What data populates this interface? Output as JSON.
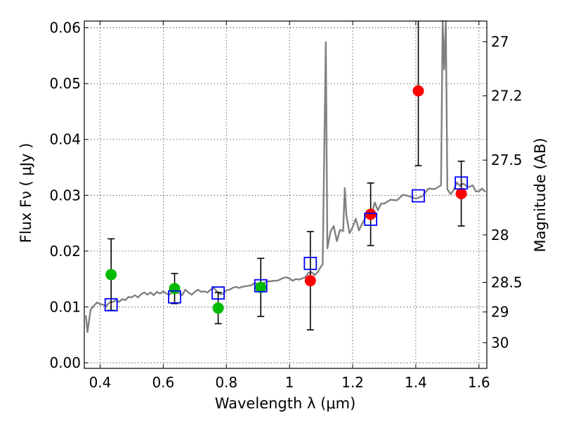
{
  "chart_data": {
    "type": "scatter",
    "xlabel": "Wavelength  λ (μm)",
    "ylabel": "Flux  Fν  ( μJy )",
    "ylabel_right": "Magnitude (AB)",
    "xlim": [
      0.35,
      1.625
    ],
    "ylim": [
      -0.001,
      0.0612
    ],
    "grid": true,
    "x_ticks": [
      0.4,
      0.6,
      0.8,
      1.0,
      1.2,
      1.4,
      1.6
    ],
    "x_tick_labels": [
      "0.4",
      "0.6",
      "0.8",
      "1",
      "1.2",
      "1.4",
      "1.6"
    ],
    "y_ticks": [
      0.0,
      0.01,
      0.02,
      0.03,
      0.04,
      0.05,
      0.06
    ],
    "y_tick_labels": [
      "0.00",
      "0.01",
      "0.02",
      "0.03",
      "0.04",
      "0.05",
      "0.06"
    ],
    "right_ticks": [
      {
        "label": "27",
        "flux": 0.0575
      },
      {
        "label": "27.2",
        "flux": 0.0478
      },
      {
        "label": "27.5",
        "flux": 0.0363
      },
      {
        "label": "28",
        "flux": 0.0229
      },
      {
        "label": "28.5",
        "flux": 0.0144
      },
      {
        "label": "29",
        "flux": 0.0091
      },
      {
        "label": "30",
        "flux": 0.0036
      }
    ],
    "series": [
      {
        "kind": "model_spectrum",
        "color": "#808080",
        "x": [
          0.355,
          0.36,
          0.365,
          0.37,
          0.38,
          0.39,
          0.4,
          0.41,
          0.42,
          0.43,
          0.44,
          0.45,
          0.46,
          0.47,
          0.48,
          0.49,
          0.5,
          0.51,
          0.52,
          0.53,
          0.54,
          0.55,
          0.56,
          0.57,
          0.58,
          0.59,
          0.6,
          0.61,
          0.62,
          0.63,
          0.64,
          0.65,
          0.66,
          0.67,
          0.68,
          0.69,
          0.7,
          0.71,
          0.72,
          0.73,
          0.74,
          0.75,
          0.76,
          0.77,
          0.78,
          0.79,
          0.8,
          0.81,
          0.82,
          0.83,
          0.84,
          0.85,
          0.86,
          0.87,
          0.88,
          0.89,
          0.9,
          0.91,
          0.92,
          0.93,
          0.94,
          0.95,
          0.96,
          0.97,
          0.98,
          0.99,
          1.0,
          1.01,
          1.02,
          1.03,
          1.04,
          1.05,
          1.06,
          1.07,
          1.08,
          1.09,
          1.1,
          1.105,
          1.11,
          1.115,
          1.12,
          1.13,
          1.14,
          1.15,
          1.16,
          1.17,
          1.175,
          1.18,
          1.19,
          1.2,
          1.21,
          1.22,
          1.23,
          1.24,
          1.25,
          1.26,
          1.27,
          1.28,
          1.29,
          1.3,
          1.32,
          1.34,
          1.36,
          1.38,
          1.4,
          1.42,
          1.44,
          1.46,
          1.48,
          1.485,
          1.49,
          1.495,
          1.5,
          1.51,
          1.52,
          1.53,
          1.54,
          1.55,
          1.56,
          1.57,
          1.58,
          1.59,
          1.6,
          1.61,
          1.62
        ],
        "y": [
          0.0085,
          0.0055,
          0.0075,
          0.0095,
          0.0102,
          0.0108,
          0.0105,
          0.0104,
          0.0102,
          0.0108,
          0.0109,
          0.0112,
          0.0109,
          0.0114,
          0.0112,
          0.0118,
          0.0117,
          0.0121,
          0.0117,
          0.0123,
          0.0126,
          0.0122,
          0.0126,
          0.0121,
          0.0127,
          0.0124,
          0.0128,
          0.0124,
          0.0122,
          0.0129,
          0.0126,
          0.0125,
          0.0121,
          0.0131,
          0.0126,
          0.0122,
          0.0127,
          0.0131,
          0.0127,
          0.0128,
          0.0126,
          0.0131,
          0.0134,
          0.0128,
          0.0123,
          0.0124,
          0.013,
          0.0131,
          0.0134,
          0.0136,
          0.0134,
          0.0136,
          0.0137,
          0.0138,
          0.0139,
          0.0143,
          0.0141,
          0.0142,
          0.0143,
          0.0146,
          0.0146,
          0.0147,
          0.0147,
          0.0149,
          0.0152,
          0.0153,
          0.0151,
          0.0147,
          0.015,
          0.0149,
          0.0151,
          0.0153,
          0.0161,
          0.0162,
          0.0157,
          0.0163,
          0.0173,
          0.0176,
          0.0378,
          0.0574,
          0.0205,
          0.0235,
          0.0245,
          0.0218,
          0.0238,
          0.0236,
          0.0313,
          0.0265,
          0.0232,
          0.0243,
          0.0258,
          0.0237,
          0.0249,
          0.0259,
          0.0266,
          0.0267,
          0.0287,
          0.0273,
          0.0285,
          0.0285,
          0.0292,
          0.0291,
          0.0301,
          0.0298,
          0.0294,
          0.0298,
          0.0312,
          0.0311,
          0.0318,
          0.0613,
          0.0525,
          0.0613,
          0.0311,
          0.0302,
          0.0309,
          0.0323,
          0.0317,
          0.0321,
          0.0317,
          0.0315,
          0.0318,
          0.0307,
          0.0307,
          0.0312,
          0.0306
        ]
      },
      {
        "kind": "observed",
        "color": "#00bb00",
        "points": [
          {
            "x": 0.435,
            "y": 0.0158,
            "err": 0.0064
          },
          {
            "x": 0.636,
            "y": 0.0133,
            "err": 0.0027
          },
          {
            "x": 0.774,
            "y": 0.0098,
            "err": 0.0028
          },
          {
            "x": 0.909,
            "y": 0.0135,
            "err": 0.0052
          }
        ]
      },
      {
        "kind": "observed",
        "color": "#ff0000",
        "points": [
          {
            "x": 1.066,
            "y": 0.0147,
            "err": 0.0088
          },
          {
            "x": 1.257,
            "y": 0.0266,
            "err": 0.0056
          },
          {
            "x": 1.408,
            "y": 0.0487,
            "err": 0.0134
          },
          {
            "x": 1.544,
            "y": 0.0303,
            "err": 0.0058
          }
        ]
      },
      {
        "kind": "model_band_flux",
        "color": "#0000ff",
        "points": [
          {
            "x": 0.435,
            "y": 0.0104
          },
          {
            "x": 0.636,
            "y": 0.0118
          },
          {
            "x": 0.774,
            "y": 0.0125
          },
          {
            "x": 0.909,
            "y": 0.0138
          },
          {
            "x": 1.066,
            "y": 0.0178
          },
          {
            "x": 1.257,
            "y": 0.0257
          },
          {
            "x": 1.408,
            "y": 0.0299
          },
          {
            "x": 1.544,
            "y": 0.0322
          }
        ]
      }
    ]
  }
}
